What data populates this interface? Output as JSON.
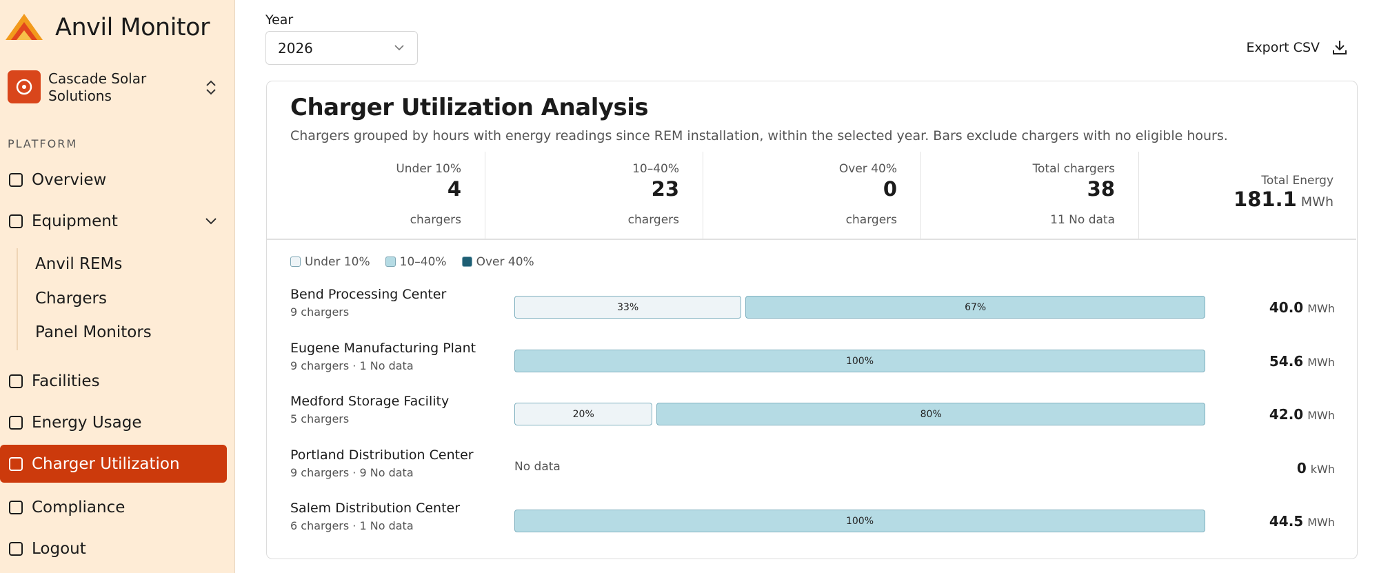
{
  "sidebar": {
    "brand": "Anvil Monitor",
    "org": "Cascade Solar Solutions",
    "section": "PLATFORM",
    "nav": [
      {
        "label": "Overview"
      },
      {
        "label": "Equipment",
        "children": [
          "Anvil REMs",
          "Chargers",
          "Panel Monitors"
        ]
      },
      {
        "label": "Facilities"
      },
      {
        "label": "Energy Usage"
      },
      {
        "label": "Charger Utilization",
        "active": true
      },
      {
        "label": "Compliance"
      },
      {
        "label": "Logout"
      }
    ]
  },
  "toolbar": {
    "year_label": "Year",
    "year": "2026",
    "export": "Export CSV"
  },
  "card": {
    "title": "Charger Utilization Analysis",
    "subtitle": "Chargers grouped by hours with energy readings since REM installation, within the selected year. Bars exclude chargers with no eligible hours.",
    "stats": [
      {
        "label": "Under 10%",
        "value": "4",
        "foot": "chargers"
      },
      {
        "label": "10–40%",
        "value": "23",
        "foot": "chargers"
      },
      {
        "label": "Over 40%",
        "value": "0",
        "foot": "chargers"
      },
      {
        "label": "Total chargers",
        "value": "38",
        "foot": "11 No data"
      }
    ],
    "total_energy": {
      "label": "Total Energy",
      "value": "181.1",
      "unit": "MWh"
    },
    "legend": [
      {
        "label": "Under 10%",
        "color": "#eef4f7"
      },
      {
        "label": "10–40%",
        "color": "#b5dbe4"
      },
      {
        "label": "Over 40%",
        "color": "#1e5f74"
      }
    ],
    "rows": [
      {
        "name": "Bend Processing Center",
        "sub": "9 chargers",
        "segments": [
          {
            "value": 33,
            "label": "33%",
            "color": "#eef4f7"
          },
          {
            "value": 67,
            "label": "67%",
            "color": "#b5dbe4"
          }
        ],
        "energy": "40.0",
        "unit": "MWh"
      },
      {
        "name": "Eugene Manufacturing Plant",
        "sub": "9 chargers · 1 No data",
        "segments": [
          {
            "value": 100,
            "label": "100%",
            "color": "#b5dbe4"
          }
        ],
        "energy": "54.6",
        "unit": "MWh"
      },
      {
        "name": "Medford Storage Facility",
        "sub": "5 chargers",
        "segments": [
          {
            "value": 20,
            "label": "20%",
            "color": "#eef4f7"
          },
          {
            "value": 80,
            "label": "80%",
            "color": "#b5dbe4"
          }
        ],
        "energy": "42.0",
        "unit": "MWh"
      },
      {
        "name": "Portland Distribution Center",
        "sub": "9 chargers · 9 No data",
        "no_data": "No data",
        "energy": "0",
        "unit": "kWh"
      },
      {
        "name": "Salem Distribution Center",
        "sub": "6 chargers · 1 No data",
        "segments": [
          {
            "value": 100,
            "label": "100%",
            "color": "#b5dbe4"
          }
        ],
        "energy": "44.5",
        "unit": "MWh"
      }
    ]
  }
}
